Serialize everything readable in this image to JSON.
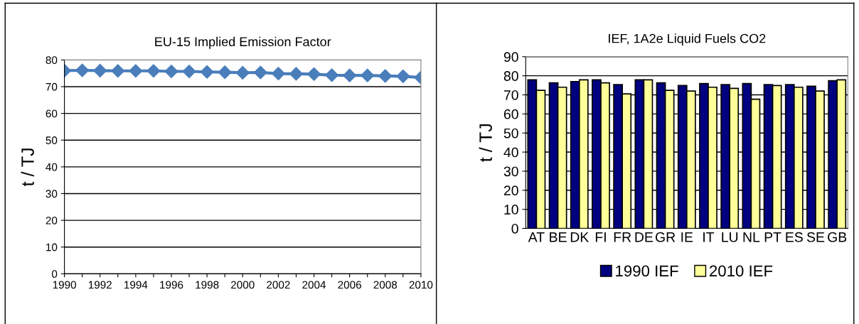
{
  "chart_data": [
    {
      "type": "line",
      "title": "EU-15 Implied Emission Factor",
      "ylabel": "t / TJ",
      "x": [
        1990,
        1991,
        1992,
        1993,
        1994,
        1995,
        1996,
        1997,
        1998,
        1999,
        2000,
        2001,
        2002,
        2003,
        2004,
        2005,
        2006,
        2007,
        2008,
        2009,
        2010
      ],
      "series": [
        {
          "color": "#4a7ebb",
          "values": [
            76.0,
            76.1,
            76.0,
            75.9,
            75.9,
            75.9,
            75.7,
            75.7,
            75.5,
            75.4,
            75.2,
            75.3,
            74.9,
            74.8,
            74.7,
            74.3,
            74.2,
            74.2,
            74.0,
            73.9,
            73.4
          ]
        }
      ],
      "marker": "diamond",
      "line_style": "solid",
      "grid": "y",
      "legend": false,
      "xlim": [
        1990,
        2010
      ],
      "ylim": [
        0,
        80
      ],
      "yticks": [
        0,
        10,
        20,
        30,
        40,
        50,
        60,
        70,
        80
      ],
      "xticks": [
        1990,
        {
          "value": 1991,
          "label": null
        },
        1992,
        {
          "value": 1993,
          "label": null
        },
        1994,
        {
          "value": 1995,
          "label": null
        },
        1996,
        {
          "value": 1997,
          "label": null
        },
        1998,
        {
          "value": 1999,
          "label": null
        },
        2000,
        {
          "value": 2001,
          "label": null
        },
        2002,
        {
          "value": 2003,
          "label": null
        },
        2004,
        {
          "value": 2005,
          "label": null
        },
        2006,
        {
          "value": 2007,
          "label": null
        },
        2008,
        {
          "value": 2009,
          "label": null
        },
        2010
      ]
    },
    {
      "type": "bar",
      "title": "IEF, 1A2e Liquid Fuels CO2",
      "ylabel": "t / TJ",
      "categories": [
        "AT",
        "BE",
        "DK",
        "FI",
        "FR",
        "DE",
        "GR",
        "IE",
        "IT",
        "LU",
        "NL",
        "PT",
        "ES",
        "SE",
        "GB"
      ],
      "series": [
        {
          "name": "1990 IEF",
          "color": "#000080",
          "values": [
            77.9,
            76.3,
            77.0,
            77.9,
            75.4,
            77.9,
            76.3,
            74.9,
            75.9,
            75.4,
            75.9,
            75.4,
            75.4,
            74.5,
            77.4
          ]
        },
        {
          "name": "2010 IEF",
          "color": "#ffff99",
          "values": [
            72.4,
            74.0,
            77.9,
            76.3,
            70.5,
            77.9,
            72.4,
            72.0,
            74.0,
            73.4,
            67.7,
            74.9,
            74.0,
            72.0,
            77.9
          ]
        }
      ],
      "grid": "y",
      "legend": "bottom",
      "ylim": [
        0,
        90
      ],
      "yticks": [
        0,
        10,
        20,
        30,
        40,
        50,
        60,
        70,
        80,
        90
      ]
    }
  ]
}
